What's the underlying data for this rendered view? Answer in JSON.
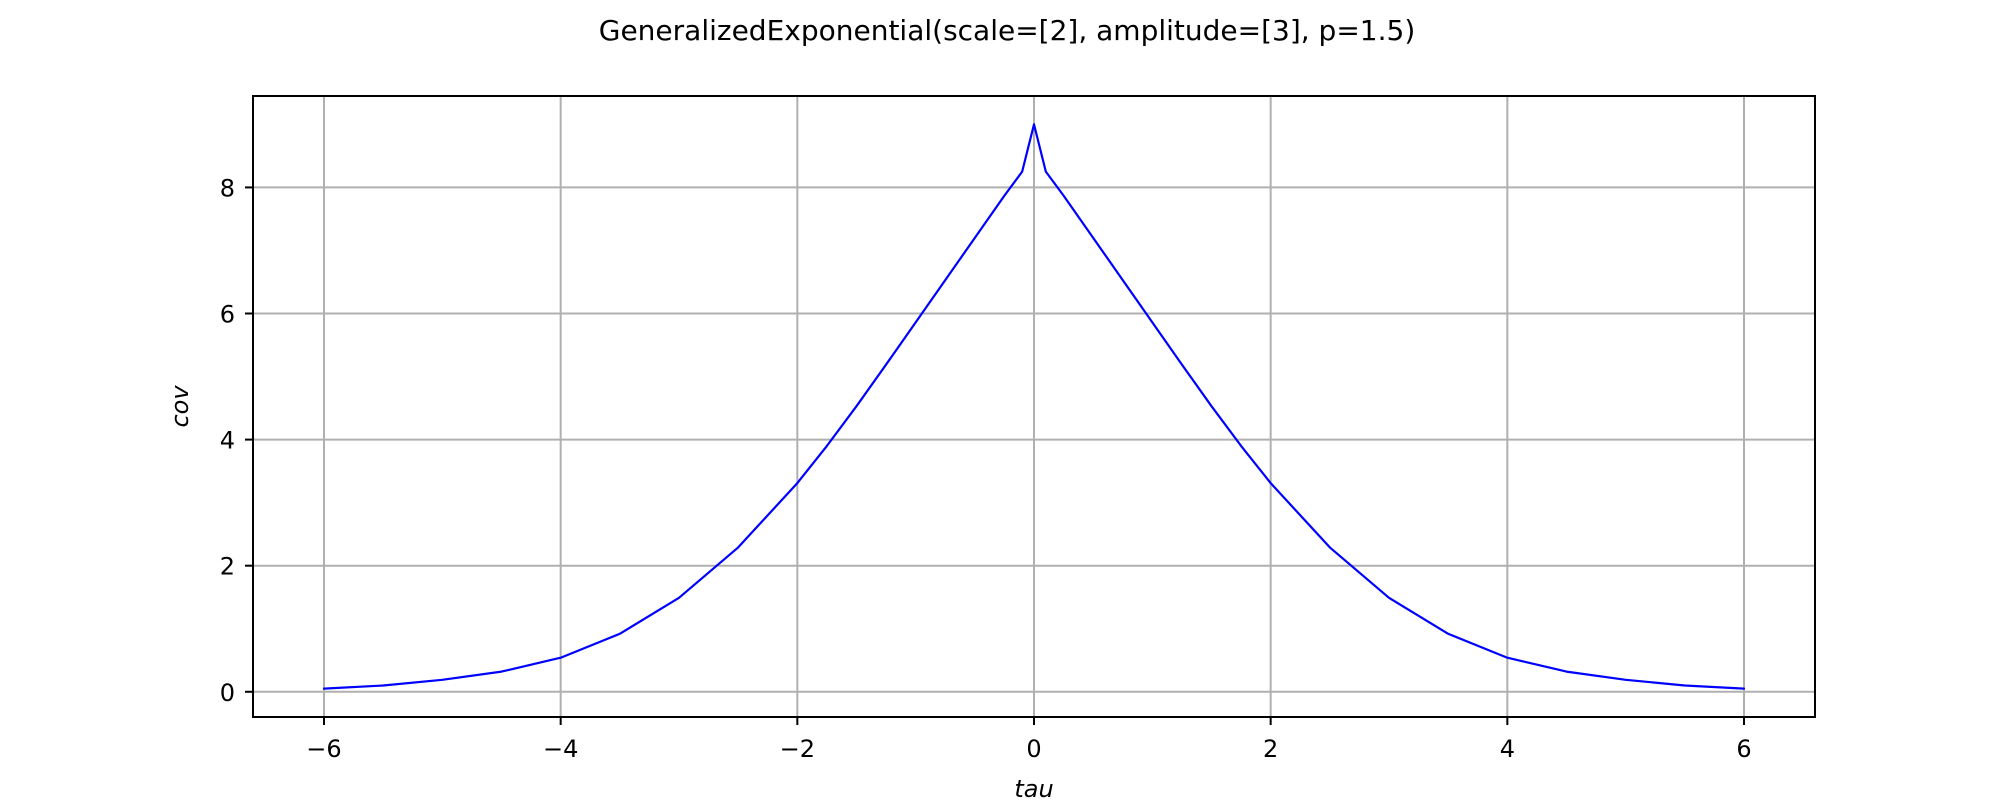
{
  "chart_data": {
    "type": "line",
    "title": "GeneralizedExponential(scale=[2], amplitude=[3], p=1.5)",
    "xlabel": "tau",
    "ylabel": "cov",
    "xlim": [
      -6.6,
      6.6
    ],
    "ylim": [
      -0.4,
      9.45
    ],
    "xticks": [
      -6,
      -4,
      -2,
      0,
      2,
      4,
      6
    ],
    "xtick_labels": [
      "−6",
      "−4",
      "−2",
      "0",
      "2",
      "4",
      "6"
    ],
    "yticks": [
      0,
      2,
      4,
      6,
      8
    ],
    "ytick_labels": [
      "0",
      "2",
      "4",
      "6",
      "8"
    ],
    "grid": true,
    "legend": "none",
    "series": [
      {
        "color": "#0000ff",
        "x": [
          -6.0,
          -5.5,
          -5.0,
          -4.5,
          -4.0,
          -3.5,
          -3.0,
          -2.5,
          -2.0,
          -1.75,
          -1.5,
          -1.25,
          -1.0,
          -0.75,
          -0.5,
          -0.25,
          -0.1,
          0.0,
          0.1,
          0.25,
          0.5,
          0.75,
          1.0,
          1.25,
          1.5,
          1.75,
          2.0,
          2.5,
          3.0,
          3.5,
          4.0,
          4.5,
          5.0,
          5.5,
          6.0
        ],
        "y": [
          0.05,
          0.1,
          0.19,
          0.32,
          0.54,
          0.92,
          1.49,
          2.29,
          3.31,
          3.9,
          4.53,
          5.19,
          5.86,
          6.53,
          7.2,
          7.87,
          8.25,
          9.0,
          8.25,
          7.87,
          7.2,
          6.53,
          5.86,
          5.19,
          4.53,
          3.9,
          3.31,
          2.29,
          1.49,
          0.92,
          0.54,
          0.32,
          0.19,
          0.1,
          0.05
        ]
      }
    ]
  }
}
